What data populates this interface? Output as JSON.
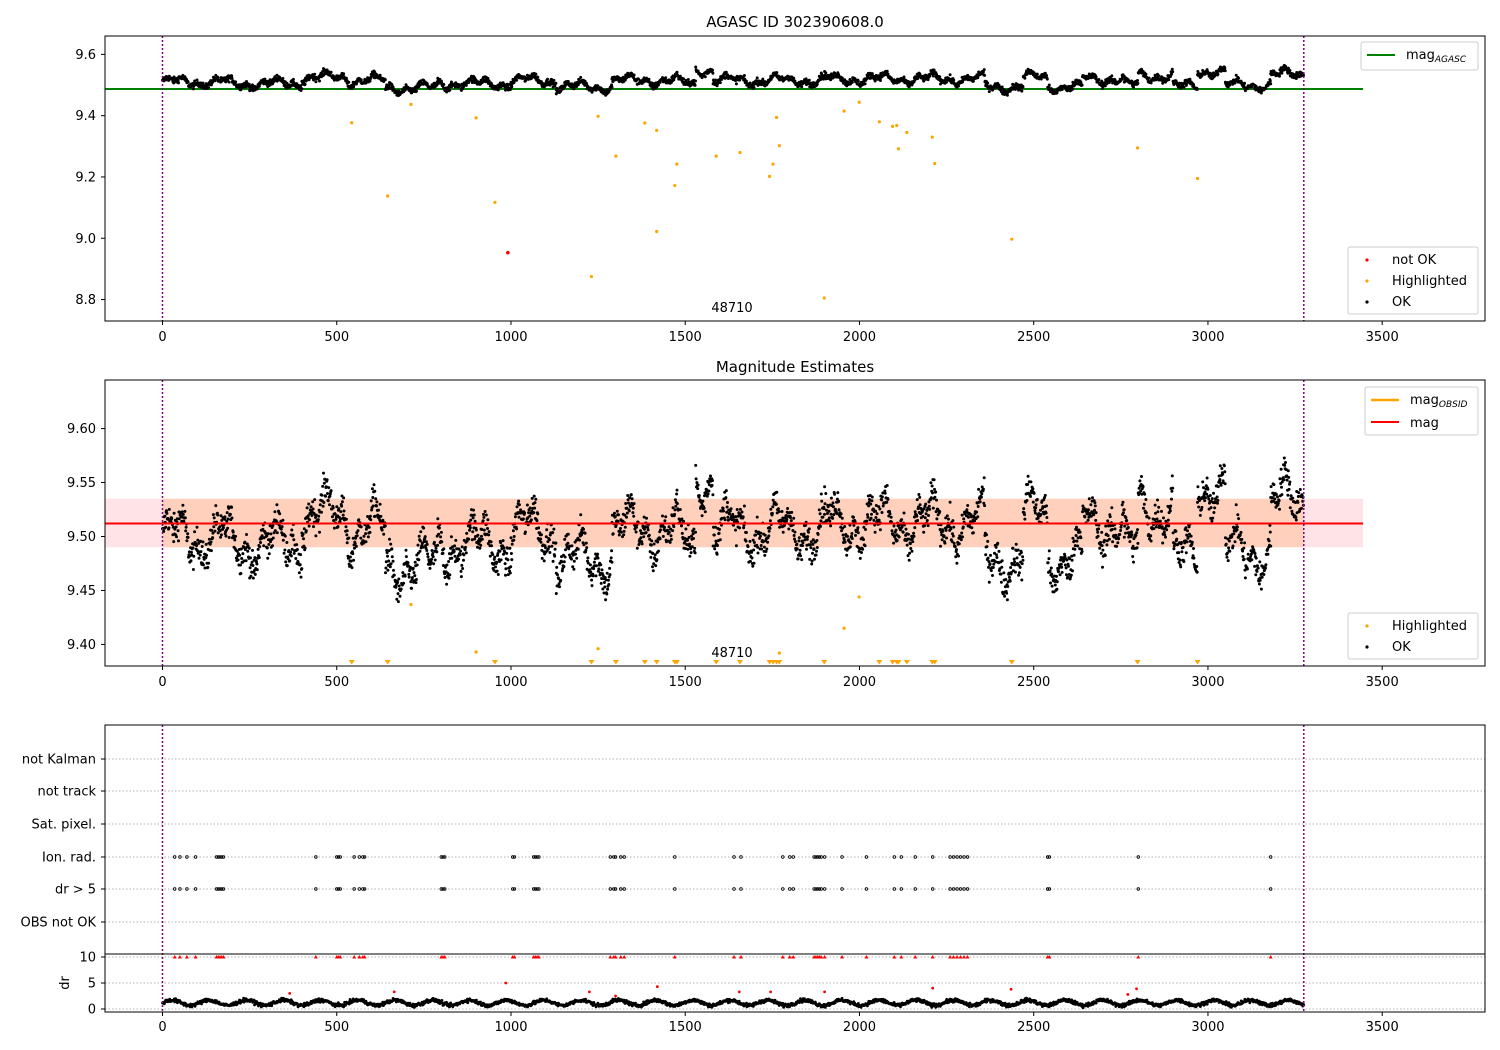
{
  "colors": {
    "ok": "#000000",
    "highlighted": "#ffa500",
    "not_ok": "#ff0000",
    "mag_agasc": "#008000",
    "mag_obsid": "#ffa500",
    "mag": "#ff0000",
    "band": "#ffc0c8",
    "boundary": "#800080",
    "grid": "#b0b0b0"
  },
  "chart_data": [
    {
      "type": "scatter",
      "title": "AGASC ID 302390608.0",
      "x_range": [
        -165,
        3795
      ],
      "ylim": [
        8.73,
        9.66
      ],
      "x_ticks": [
        0,
        500,
        1000,
        1500,
        2000,
        2500,
        3000,
        3500
      ],
      "y_ticks": [
        8.8,
        9.0,
        9.2,
        9.4,
        9.6
      ],
      "y_tick_labels": [
        "8.8",
        "9.0",
        "9.2",
        "9.4",
        "9.6"
      ],
      "vlines_x": [
        0,
        3275
      ],
      "obsid_annotation": {
        "text": "48710",
        "x": 1635
      },
      "mag_agasc_line": {
        "y": 9.487,
        "x_range": [
          -165,
          3445
        ]
      },
      "ok_series": {
        "segments": [
          {
            "x_start": 0,
            "x_end": 180,
            "mean": 9.51
          },
          {
            "x_start": 180,
            "x_end": 400,
            "mean": 9.505
          },
          {
            "x_start": 400,
            "x_end": 530,
            "mean": 9.525
          },
          {
            "x_start": 530,
            "x_end": 640,
            "mean": 9.515
          },
          {
            "x_start": 640,
            "x_end": 790,
            "mean": 9.49
          },
          {
            "x_start": 790,
            "x_end": 1000,
            "mean": 9.505
          },
          {
            "x_start": 1000,
            "x_end": 1130,
            "mean": 9.515
          },
          {
            "x_start": 1130,
            "x_end": 1290,
            "mean": 9.495
          },
          {
            "x_start": 1290,
            "x_end": 1480,
            "mean": 9.515
          },
          {
            "x_start": 1480,
            "x_end": 1530,
            "mean": 9.505
          },
          {
            "x_start": 1530,
            "x_end": 1580,
            "mean": 9.55
          },
          {
            "x_start": 1580,
            "x_end": 1900,
            "mean": 9.515
          },
          {
            "x_start": 1900,
            "x_end": 2060,
            "mean": 9.52
          },
          {
            "x_start": 2060,
            "x_end": 2360,
            "mean": 9.52
          },
          {
            "x_start": 2360,
            "x_end": 2470,
            "mean": 9.495
          },
          {
            "x_start": 2470,
            "x_end": 2540,
            "mean": 9.525
          },
          {
            "x_start": 2540,
            "x_end": 2640,
            "mean": 9.495
          },
          {
            "x_start": 2640,
            "x_end": 2760,
            "mean": 9.52
          },
          {
            "x_start": 2760,
            "x_end": 2800,
            "mean": 9.5
          },
          {
            "x_start": 2800,
            "x_end": 2900,
            "mean": 9.53
          },
          {
            "x_start": 2900,
            "x_end": 2970,
            "mean": 9.495
          },
          {
            "x_start": 2970,
            "x_end": 3050,
            "mean": 9.545
          },
          {
            "x_start": 3050,
            "x_end": 3180,
            "mean": 9.5
          },
          {
            "x_start": 3180,
            "x_end": 3275,
            "mean": 9.535
          }
        ],
        "spread": 0.025
      },
      "highlighted_points": [
        [
          543,
          9.377
        ],
        [
          646,
          9.138
        ],
        [
          713,
          9.437
        ],
        [
          900,
          9.393
        ],
        [
          954,
          9.117
        ],
        [
          1250,
          9.398
        ],
        [
          1301,
          9.268
        ],
        [
          1384,
          9.376
        ],
        [
          1418,
          9.352
        ],
        [
          1418,
          9.022
        ],
        [
          1470,
          9.172
        ],
        [
          1476,
          9.242
        ],
        [
          1589,
          9.268
        ],
        [
          1657,
          9.28
        ],
        [
          1742,
          9.202
        ],
        [
          1752,
          9.242
        ],
        [
          1762,
          9.394
        ],
        [
          1770,
          9.302
        ],
        [
          1899,
          8.805
        ],
        [
          1956,
          9.415
        ],
        [
          1999,
          9.444
        ],
        [
          2057,
          9.38
        ],
        [
          2095,
          9.365
        ],
        [
          2107,
          9.368
        ],
        [
          2112,
          9.292
        ],
        [
          2136,
          9.345
        ],
        [
          2209,
          9.33
        ],
        [
          2216,
          9.244
        ],
        [
          2437,
          8.997
        ],
        [
          2798,
          9.295
        ],
        [
          2970,
          9.195
        ],
        [
          1231,
          8.875
        ]
      ],
      "not_ok_points": [
        [
          991,
          8.953
        ]
      ],
      "legends": [
        {
          "position": "upper-right",
          "entries": [
            {
              "label": "mag",
              "subscript": "AGASC",
              "marker": "line"
            }
          ]
        },
        {
          "position": "lower-right",
          "entries": [
            {
              "label": "not OK",
              "marker": "dot"
            },
            {
              "label": "Highlighted",
              "marker": "dot"
            },
            {
              "label": "OK",
              "marker": "dot"
            }
          ]
        }
      ]
    },
    {
      "type": "scatter",
      "title": "Magnitude Estimates",
      "x_range": [
        -165,
        3795
      ],
      "ylim": [
        9.38,
        9.645
      ],
      "x_ticks": [
        0,
        500,
        1000,
        1500,
        2000,
        2500,
        3000,
        3500
      ],
      "y_ticks": [
        9.4,
        9.45,
        9.5,
        9.55,
        9.6
      ],
      "y_tick_labels": [
        "9.40",
        "9.45",
        "9.50",
        "9.55",
        "9.60"
      ],
      "vlines_x": [
        0,
        3275
      ],
      "obsid_annotation": {
        "text": "48710",
        "x": 1635
      },
      "mag_line": {
        "y": 9.512,
        "x_range": [
          -165,
          3445
        ]
      },
      "mag_band": {
        "y_low": 9.49,
        "y_high": 9.535,
        "x_range": [
          -165,
          3445
        ]
      },
      "ok_series": {
        "source": "same as top panel",
        "spread": 0.025
      },
      "highlighted_points": [
        [
          713,
          9.437
        ],
        [
          900,
          9.393
        ],
        [
          1250,
          9.396
        ],
        [
          1770,
          9.392
        ],
        [
          1956,
          9.415
        ],
        [
          1999,
          9.444
        ]
      ],
      "highlighted_below_axis_x": [
        543,
        646,
        954,
        1231,
        1301,
        1384,
        1418,
        1470,
        1476,
        1589,
        1657,
        1742,
        1752,
        1762,
        1770,
        1899,
        2057,
        2095,
        2107,
        2112,
        2136,
        2209,
        2216,
        2437,
        2798,
        2970
      ],
      "legends": [
        {
          "position": "upper-right",
          "entries": [
            {
              "label": "mag",
              "subscript": "OBSID",
              "marker": "line"
            },
            {
              "label": "mag",
              "marker": "line"
            }
          ]
        },
        {
          "position": "lower-right",
          "entries": [
            {
              "label": "Highlighted",
              "marker": "dot"
            },
            {
              "label": "OK",
              "marker": "dot"
            }
          ]
        }
      ]
    },
    {
      "type": "scatter",
      "title": "",
      "x_range": [
        -165,
        3795
      ],
      "vlines_x": [
        0,
        3275
      ],
      "flag_rows": [
        "not Kalman",
        "not track",
        "Sat. pixel.",
        "Ion. rad.",
        "dr > 5",
        "OBS not OK"
      ],
      "flag_events_x": [
        35,
        50,
        70,
        95,
        155,
        160,
        165,
        170,
        175,
        440,
        500,
        505,
        510,
        550,
        565,
        575,
        580,
        800,
        805,
        810,
        1005,
        1010,
        1065,
        1070,
        1075,
        1080,
        1285,
        1295,
        1300,
        1315,
        1325,
        1470,
        1640,
        1660,
        1780,
        1800,
        1810,
        1870,
        1875,
        1880,
        1885,
        1890,
        1900,
        1950,
        2020,
        2100,
        2120,
        2160,
        2210,
        2260,
        2270,
        2280,
        2290,
        2300,
        2310,
        2540,
        2545,
        2800,
        3180
      ],
      "dr_panel": {
        "ylabel": "dr",
        "ylim": [
          0,
          10
        ],
        "y_ticks": [
          0,
          5,
          10
        ],
        "typical_level": 1.2,
        "red_points": [
          [
            365,
            3.0
          ],
          [
            665,
            3.3
          ],
          [
            985,
            5.0
          ],
          [
            1225,
            3.3
          ],
          [
            1300,
            2.5
          ],
          [
            1420,
            4.3
          ],
          [
            1655,
            3.3
          ],
          [
            1745,
            3.3
          ],
          [
            1900,
            3.3
          ],
          [
            2210,
            4.0
          ],
          [
            2435,
            3.8
          ],
          [
            2770,
            2.8
          ],
          [
            2795,
            3.9
          ]
        ]
      },
      "x_ticks": [
        0,
        500,
        1000,
        1500,
        2000,
        2500,
        3000,
        3500
      ]
    }
  ]
}
